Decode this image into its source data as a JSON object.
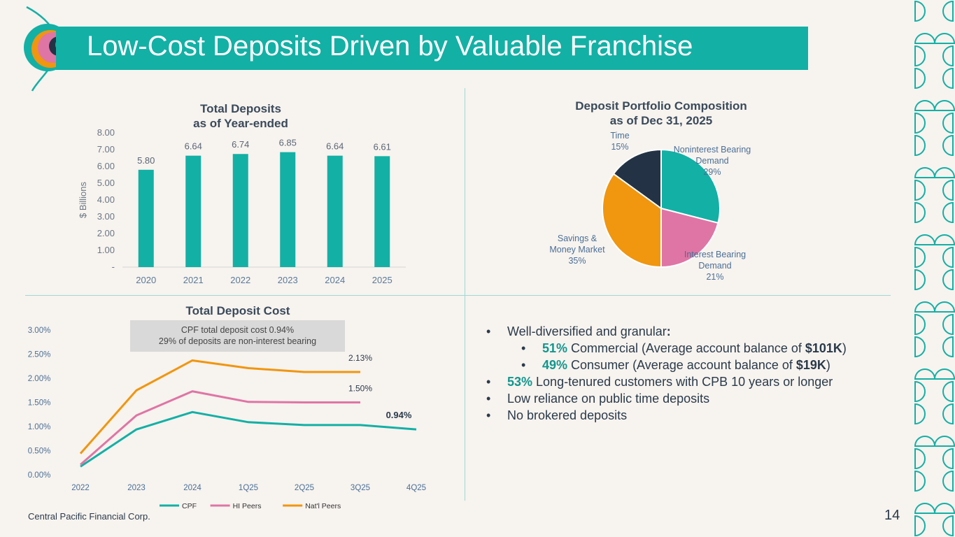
{
  "header": {
    "title": "Low-Cost Deposits Driven by Valuable Franchise"
  },
  "footer": {
    "company": "Central Pacific Financial Corp.",
    "page_number": "14"
  },
  "colors": {
    "teal": "#13b0a5",
    "pink": "#df75a5",
    "orange": "#f0960f",
    "navy": "#233345"
  },
  "chart_data": [
    {
      "type": "bar",
      "title_line1": "Total Deposits",
      "title_line2": "as of Year-ended",
      "ylabel": "$ Billions",
      "categories": [
        "2020",
        "2021",
        "2022",
        "2023",
        "2024",
        "2025"
      ],
      "values": [
        5.8,
        6.64,
        6.74,
        6.85,
        6.64,
        6.61
      ],
      "value_labels": [
        "5.80",
        "6.64",
        "6.74",
        "6.85",
        "6.64",
        "6.61"
      ],
      "yticks": [
        "-",
        "1.00",
        "2.00",
        "3.00",
        "4.00",
        "5.00",
        "6.00",
        "7.00",
        "8.00"
      ],
      "ylim": [
        0,
        8
      ],
      "color": "#13b0a5"
    },
    {
      "type": "pie",
      "title_line1": "Deposit Portfolio Composition",
      "title_line2": "as of Dec 31, 2025",
      "slices": [
        {
          "label_lines": [
            "Noninterest Bearing",
            "Demand",
            "29%"
          ],
          "value": 29,
          "color": "#13b0a5"
        },
        {
          "label_lines": [
            "Interest Bearing",
            "Demand",
            "21%"
          ],
          "value": 21,
          "color": "#df75a5"
        },
        {
          "label_lines": [
            "Savings &",
            "Money Market",
            "35%"
          ],
          "value": 35,
          "color": "#f0960f"
        },
        {
          "label_lines": [
            "Time",
            "15%"
          ],
          "value": 15,
          "color": "#233345"
        }
      ]
    },
    {
      "type": "line",
      "title": "Total Deposit Cost",
      "categories": [
        "2022",
        "2023",
        "2024",
        "1Q25",
        "2Q25",
        "3Q25",
        "4Q25"
      ],
      "yticks": [
        "0.00%",
        "0.50%",
        "1.00%",
        "1.50%",
        "2.00%",
        "2.50%",
        "3.00%"
      ],
      "ylim": [
        0,
        3.0
      ],
      "series": [
        {
          "name": "CPF",
          "color": "#13b0a5",
          "values": [
            0.17,
            0.94,
            1.3,
            1.09,
            1.03,
            1.03,
            0.94
          ]
        },
        {
          "name": "HI Peers",
          "color": "#df75a5",
          "values": [
            0.21,
            1.23,
            1.73,
            1.51,
            1.5,
            1.5,
            null
          ]
        },
        {
          "name": "Nat'l Peers",
          "color": "#f0960f",
          "values": [
            0.44,
            1.75,
            2.37,
            2.21,
            2.13,
            2.13,
            null
          ]
        }
      ],
      "data_labels": [
        {
          "text": "2.13%",
          "series": 2,
          "index": 5,
          "bold": false
        },
        {
          "text": "1.50%",
          "series": 1,
          "index": 5,
          "bold": false
        },
        {
          "text": "0.94%",
          "series": 0,
          "index": 6,
          "bold": true
        }
      ],
      "annotation_line1": "CPF total deposit cost 0.94%",
      "annotation_line2": "29% of deposits are non-interest bearing"
    }
  ],
  "bullets": {
    "b1": {
      "text": "Well-diversified and granular",
      "colon": ":"
    },
    "b2": {
      "pct": "51%",
      "pre": " Commercial (Average account balance of ",
      "amt": "$101K",
      "post": ")"
    },
    "b3": {
      "pct": "49%",
      "pre": " Consumer (Average account balance of ",
      "amt": "$19K",
      "post": ")"
    },
    "b4": {
      "pct": "53%",
      "rest": " Long-tenured customers with CPB 10 years or longer"
    },
    "b5": {
      "text": "Low reliance on public time deposits"
    },
    "b6": {
      "text": "No brokered deposits"
    },
    "bullet_char": "•"
  }
}
